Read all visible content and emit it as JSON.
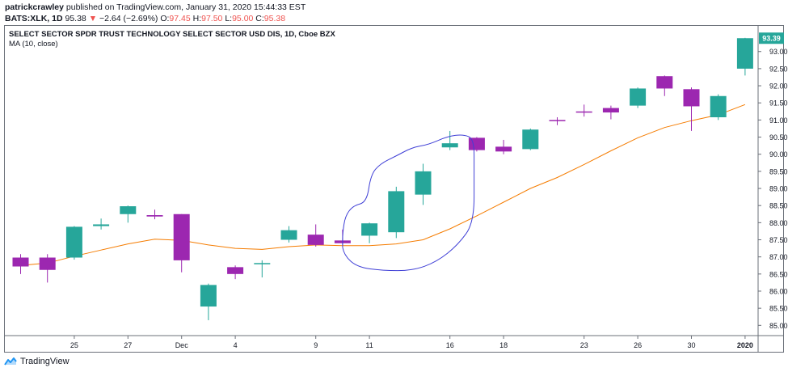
{
  "header": {
    "publisher": "patrickcrawley",
    "published_text": "published on TradingView.com, January 31, 2020 15:44:33 EST",
    "symbol": "BATS:XLK, 1D",
    "last": "95.38",
    "change_arrow": "▼",
    "change": "−2.64 (−2.69%)",
    "open_label": "O:",
    "open": "97.45",
    "high_label": "H:",
    "high": "97.50",
    "low_label": "L:",
    "low": "95.00",
    "close_label": "C:",
    "close": "95.38"
  },
  "legend": {
    "title": "SELECT SECTOR SPDR TRUST TECHNOLOGY SELECT SECTOR USD DIS, 1D, Cboe BZX",
    "indicator": "MA (10, close)"
  },
  "footer": {
    "brand": "TradingView"
  },
  "colors": {
    "up": "#26a69a",
    "down": "#9c27b0",
    "ma": "#f57c00",
    "annotation": "#3f3fd6",
    "price_tag": "#26a69a",
    "axis_text": "#131722",
    "frame": "#6b7079"
  },
  "chart_data": {
    "type": "candlestick",
    "ylim": [
      84.7,
      93.75
    ],
    "y_ticks": [
      85.0,
      85.5,
      86.0,
      86.5,
      87.0,
      87.5,
      88.0,
      88.5,
      89.0,
      89.5,
      90.0,
      90.5,
      91.0,
      91.5,
      92.0,
      92.5,
      93.0
    ],
    "last_price_label": "93.39",
    "x_ticks": [
      {
        "index": 2,
        "label": "25"
      },
      {
        "index": 4,
        "label": "27"
      },
      {
        "index": 6,
        "label": "Dec"
      },
      {
        "index": 8,
        "label": "4"
      },
      {
        "index": 11,
        "label": "9"
      },
      {
        "index": 13,
        "label": "11"
      },
      {
        "index": 16,
        "label": "16"
      },
      {
        "index": 18,
        "label": "18"
      },
      {
        "index": 21,
        "label": "23"
      },
      {
        "index": 23,
        "label": "26"
      },
      {
        "index": 25,
        "label": "30"
      },
      {
        "index": 27,
        "label": "2020"
      }
    ],
    "candles": [
      {
        "o": 86.98,
        "h": 87.08,
        "l": 86.5,
        "c": 86.72
      },
      {
        "o": 86.98,
        "h": 87.08,
        "l": 86.25,
        "c": 86.62
      },
      {
        "o": 86.98,
        "h": 87.9,
        "l": 86.92,
        "c": 87.88
      },
      {
        "o": 87.9,
        "h": 88.12,
        "l": 87.8,
        "c": 87.95
      },
      {
        "o": 88.25,
        "h": 88.5,
        "l": 88.0,
        "c": 88.48
      },
      {
        "o": 88.22,
        "h": 88.38,
        "l": 88.1,
        "c": 88.18
      },
      {
        "o": 88.25,
        "h": 88.25,
        "l": 86.55,
        "c": 86.9
      },
      {
        "o": 85.55,
        "h": 86.22,
        "l": 85.15,
        "c": 86.18
      },
      {
        "o": 86.7,
        "h": 86.75,
        "l": 86.35,
        "c": 86.5
      },
      {
        "o": 86.8,
        "h": 86.9,
        "l": 86.4,
        "c": 86.82
      },
      {
        "o": 87.5,
        "h": 87.9,
        "l": 87.42,
        "c": 87.78
      },
      {
        "o": 87.65,
        "h": 87.95,
        "l": 87.3,
        "c": 87.35
      },
      {
        "o": 87.48,
        "h": 87.8,
        "l": 87.35,
        "c": 87.4
      },
      {
        "o": 87.62,
        "h": 88.0,
        "l": 87.4,
        "c": 87.98
      },
      {
        "o": 87.72,
        "h": 89.05,
        "l": 87.55,
        "c": 88.92
      },
      {
        "o": 88.82,
        "h": 89.72,
        "l": 88.52,
        "c": 89.5
      },
      {
        "o": 90.2,
        "h": 90.68,
        "l": 90.12,
        "c": 90.32
      },
      {
        "o": 90.48,
        "h": 90.5,
        "l": 90.08,
        "c": 90.12
      },
      {
        "o": 90.22,
        "h": 90.42,
        "l": 90.0,
        "c": 90.08
      },
      {
        "o": 90.15,
        "h": 90.75,
        "l": 90.12,
        "c": 90.72
      },
      {
        "o": 91.0,
        "h": 91.08,
        "l": 90.85,
        "c": 90.97
      },
      {
        "o": 91.25,
        "h": 91.45,
        "l": 91.1,
        "c": 91.22
      },
      {
        "o": 91.35,
        "h": 91.42,
        "l": 91.02,
        "c": 91.22
      },
      {
        "o": 91.42,
        "h": 91.95,
        "l": 91.35,
        "c": 91.92
      },
      {
        "o": 92.28,
        "h": 92.3,
        "l": 91.7,
        "c": 91.92
      },
      {
        "o": 91.9,
        "h": 91.95,
        "l": 90.68,
        "c": 91.4
      },
      {
        "o": 91.08,
        "h": 91.75,
        "l": 91.0,
        "c": 91.7
      },
      {
        "o": 92.5,
        "h": 93.4,
        "l": 92.3,
        "c": 93.39
      }
    ],
    "ma": [
      {
        "x": 0,
        "y": 86.75
      },
      {
        "x": 1,
        "y": 86.82
      },
      {
        "x": 2,
        "y": 87.02
      },
      {
        "x": 3,
        "y": 87.2
      },
      {
        "x": 4,
        "y": 87.38
      },
      {
        "x": 5,
        "y": 87.52
      },
      {
        "x": 6,
        "y": 87.48
      },
      {
        "x": 7,
        "y": 87.35
      },
      {
        "x": 8,
        "y": 87.25
      },
      {
        "x": 9,
        "y": 87.22
      },
      {
        "x": 10,
        "y": 87.3
      },
      {
        "x": 11,
        "y": 87.35
      },
      {
        "x": 12,
        "y": 87.33
      },
      {
        "x": 13,
        "y": 87.33
      },
      {
        "x": 14,
        "y": 87.38
      },
      {
        "x": 15,
        "y": 87.5
      },
      {
        "x": 16,
        "y": 87.82
      },
      {
        "x": 17,
        "y": 88.2
      },
      {
        "x": 18,
        "y": 88.6
      },
      {
        "x": 19,
        "y": 89.0
      },
      {
        "x": 20,
        "y": 89.32
      },
      {
        "x": 21,
        "y": 89.7
      },
      {
        "x": 22,
        "y": 90.1
      },
      {
        "x": 23,
        "y": 90.48
      },
      {
        "x": 24,
        "y": 90.78
      },
      {
        "x": 25,
        "y": 90.98
      },
      {
        "x": 26,
        "y": 91.15
      },
      {
        "x": 27,
        "y": 91.45
      }
    ],
    "annotation_path": [
      {
        "x": 12.0,
        "y": 87.28
      },
      {
        "x": 12.05,
        "y": 87.05
      },
      {
        "x": 12.55,
        "y": 86.7
      },
      {
        "x": 13.5,
        "y": 86.6
      },
      {
        "x": 14.6,
        "y": 86.6
      },
      {
        "x": 15.5,
        "y": 86.85
      },
      {
        "x": 16.3,
        "y": 87.35
      },
      {
        "x": 16.9,
        "y": 88.0
      },
      {
        "x": 16.9,
        "y": 89.5
      },
      {
        "x": 16.9,
        "y": 90.45
      },
      {
        "x": 16.5,
        "y": 90.58
      },
      {
        "x": 15.9,
        "y": 90.52
      },
      {
        "x": 15.2,
        "y": 90.28
      },
      {
        "x": 14.6,
        "y": 90.2
      },
      {
        "x": 14.0,
        "y": 89.95
      },
      {
        "x": 13.4,
        "y": 89.72
      },
      {
        "x": 13.05,
        "y": 89.4
      },
      {
        "x": 12.9,
        "y": 88.6
      },
      {
        "x": 12.4,
        "y": 88.5
      },
      {
        "x": 12.1,
        "y": 88.2
      },
      {
        "x": 12.0,
        "y": 87.7
      },
      {
        "x": 12.0,
        "y": 87.28
      }
    ]
  }
}
